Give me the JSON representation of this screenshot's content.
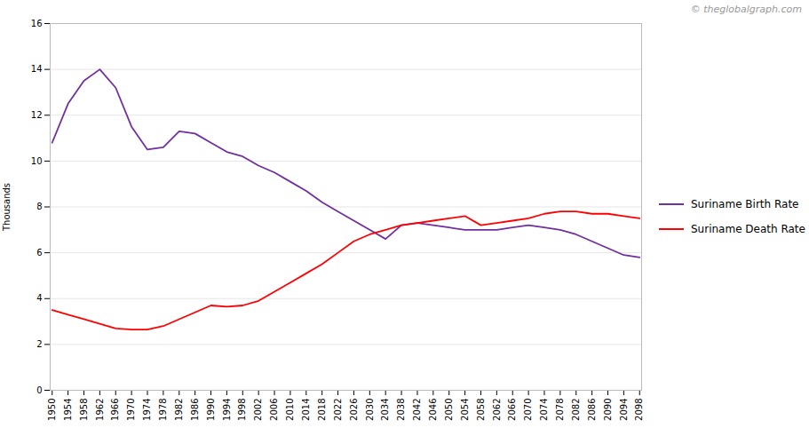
{
  "chart_data": {
    "type": "line",
    "ylabel": "Thousands",
    "x": [
      1950,
      1954,
      1958,
      1962,
      1966,
      1970,
      1974,
      1978,
      1982,
      1986,
      1990,
      1994,
      1998,
      2002,
      2006,
      2010,
      2014,
      2018,
      2022,
      2026,
      2030,
      2034,
      2038,
      2042,
      2046,
      2050,
      2054,
      2058,
      2062,
      2066,
      2070,
      2074,
      2078,
      2082,
      2086,
      2090,
      2094,
      2098
    ],
    "series": [
      {
        "name": "Suriname Birth Rate",
        "color": "#7030A0",
        "values": [
          10.8,
          12.5,
          13.5,
          14.0,
          13.2,
          11.5,
          10.5,
          10.6,
          11.3,
          11.2,
          10.8,
          10.4,
          10.2,
          9.8,
          9.5,
          9.1,
          8.7,
          8.2,
          7.8,
          7.4,
          7.0,
          6.6,
          7.2,
          7.3,
          7.2,
          7.1,
          7.0,
          7.0,
          7.0,
          7.1,
          7.2,
          7.1,
          7.0,
          6.8,
          6.5,
          6.2,
          5.9,
          5.8
        ]
      },
      {
        "name": "Suriname Death Rate",
        "color": "#FF0000",
        "values": [
          3.5,
          3.3,
          3.1,
          2.9,
          2.7,
          2.65,
          2.65,
          2.8,
          3.1,
          3.4,
          3.7,
          3.65,
          3.7,
          3.9,
          4.3,
          4.7,
          5.1,
          5.5,
          6.0,
          6.5,
          6.8,
          7.0,
          7.2,
          7.3,
          7.4,
          7.5,
          7.6,
          7.2,
          7.3,
          7.4,
          7.5,
          7.7,
          7.8,
          7.8,
          7.7,
          7.7,
          7.6,
          7.5
        ]
      }
    ],
    "xlim": [
      1949.5,
      2098.5
    ],
    "xticks": [
      1950,
      1954,
      1958,
      1962,
      1966,
      1970,
      1974,
      1978,
      1982,
      1986,
      1990,
      1994,
      1998,
      2002,
      2006,
      2010,
      2014,
      2018,
      2022,
      2026,
      2030,
      2034,
      2038,
      2042,
      2046,
      2050,
      2054,
      2058,
      2062,
      2066,
      2070,
      2074,
      2078,
      2082,
      2086,
      2090,
      2094,
      2098
    ],
    "ylim": [
      0,
      16
    ],
    "yticks": [
      0,
      2,
      4,
      6,
      8,
      10,
      12,
      14,
      16
    ],
    "grid": true,
    "legend": "right",
    "annotations": [
      "© theglobalgraph.com"
    ]
  }
}
